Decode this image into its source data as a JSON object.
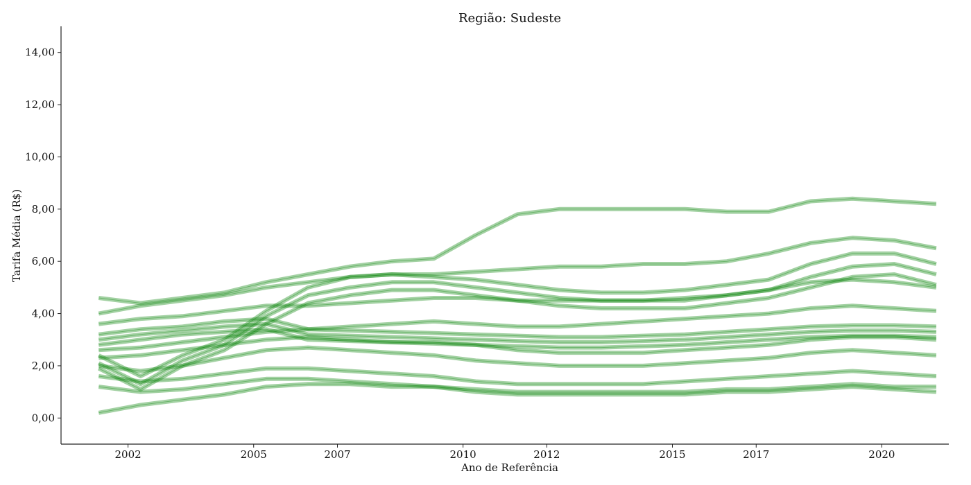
{
  "chart_data": {
    "type": "line",
    "title": "Região: Sudeste",
    "xlabel": "Ano de Referência",
    "ylabel": "Tarifa Média (R$)",
    "xlim": [
      2000.4,
      2021.6
    ],
    "ylim": [
      -1.0,
      15.0
    ],
    "x_ticks": [
      2002,
      2005,
      2007,
      2010,
      2012,
      2015,
      2017,
      2020
    ],
    "y_ticks": [
      0,
      2,
      4,
      6,
      8,
      10,
      12,
      14
    ],
    "y_tick_labels": [
      "0,00",
      "2,00",
      "4,00",
      "6,00",
      "8,00",
      "10,00",
      "12,00",
      "14,00"
    ],
    "grid": false,
    "line_color": "#008000",
    "line_alpha": 0.12,
    "x": [
      2001.3,
      2002.3,
      2003.3,
      2004.3,
      2005.3,
      2006.3,
      2007.3,
      2008.3,
      2009.3,
      2010.3,
      2011.3,
      2012.3,
      2013.3,
      2014.3,
      2015.3,
      2016.3,
      2017.3,
      2018.3,
      2019.3,
      2020.3,
      2021.3
    ],
    "series": [
      {
        "values": [
          2.1,
          1.3,
          2.2,
          2.8,
          3.9,
          4.7,
          5.0,
          5.2,
          5.2,
          5.0,
          4.8,
          4.6,
          4.5,
          4.5,
          4.5,
          4.7,
          4.9,
          5.4,
          5.8,
          5.9,
          5.5
        ]
      },
      {
        "values": [
          3.0,
          3.2,
          3.35,
          3.5,
          3.6,
          3.2,
          3.15,
          3.1,
          3.05,
          3.0,
          2.95,
          2.9,
          2.9,
          2.95,
          3.0,
          3.1,
          3.2,
          3.3,
          3.35,
          3.35,
          3.3
        ]
      },
      {
        "values": [
          2.4,
          1.6,
          2.4,
          3.0,
          4.1,
          5.0,
          5.4,
          5.5,
          5.4,
          5.3,
          5.1,
          4.9,
          4.8,
          4.8,
          4.9,
          5.1,
          5.3,
          5.9,
          6.3,
          6.3,
          5.9
        ]
      },
      {
        "values": [
          1.9,
          1.1,
          2.0,
          2.6,
          3.6,
          4.4,
          4.7,
          4.9,
          4.9,
          4.7,
          4.5,
          4.3,
          4.2,
          4.2,
          4.2,
          4.4,
          4.6,
          5.0,
          5.4,
          5.5,
          5.1
        ]
      },
      {
        "values": [
          3.2,
          3.4,
          3.5,
          3.7,
          3.8,
          3.4,
          3.35,
          3.3,
          3.25,
          3.2,
          3.15,
          3.1,
          3.1,
          3.15,
          3.2,
          3.3,
          3.4,
          3.5,
          3.55,
          3.55,
          3.5
        ]
      },
      {
        "values": [
          2.8,
          3.0,
          3.2,
          3.3,
          3.4,
          3.0,
          2.95,
          2.9,
          2.85,
          2.8,
          2.75,
          2.7,
          2.7,
          2.75,
          2.8,
          2.9,
          3.0,
          3.1,
          3.15,
          3.15,
          3.1
        ]
      },
      {
        "values": [
          2.6,
          2.7,
          2.9,
          3.1,
          3.3,
          3.4,
          3.5,
          3.6,
          3.7,
          3.6,
          3.5,
          3.5,
          3.6,
          3.7,
          3.8,
          3.9,
          4.0,
          4.2,
          4.3,
          4.2,
          4.1
        ]
      },
      {
        "values": [
          2.0,
          1.8,
          2.0,
          2.3,
          2.6,
          2.7,
          2.6,
          2.5,
          2.4,
          2.2,
          2.1,
          2.0,
          2.0,
          2.0,
          2.1,
          2.2,
          2.3,
          2.5,
          2.6,
          2.5,
          2.4
        ]
      },
      {
        "values": [
          1.6,
          1.4,
          1.5,
          1.7,
          1.9,
          1.9,
          1.8,
          1.7,
          1.6,
          1.4,
          1.3,
          1.3,
          1.3,
          1.3,
          1.4,
          1.5,
          1.6,
          1.7,
          1.8,
          1.7,
          1.6
        ]
      },
      {
        "values": [
          3.6,
          3.8,
          3.9,
          4.1,
          4.3,
          4.3,
          4.4,
          4.5,
          4.6,
          4.6,
          4.5,
          4.5,
          4.5,
          4.5,
          4.6,
          4.7,
          4.9,
          5.2,
          5.3,
          5.2,
          5.0
        ]
      },
      {
        "values": [
          1.2,
          1.0,
          1.1,
          1.3,
          1.5,
          1.5,
          1.4,
          1.3,
          1.2,
          1.0,
          0.9,
          0.9,
          0.9,
          0.9,
          0.9,
          1.0,
          1.0,
          1.1,
          1.2,
          1.1,
          1.0
        ]
      },
      {
        "values": [
          4.0,
          4.3,
          4.5,
          4.7,
          5.0,
          5.2,
          5.4,
          5.5,
          5.5,
          5.6,
          5.7,
          5.8,
          5.8,
          5.9,
          5.9,
          6.0,
          6.3,
          6.7,
          6.9,
          6.8,
          6.5
        ]
      },
      {
        "values": [
          2.3,
          2.4,
          2.6,
          2.8,
          3.0,
          3.1,
          3.0,
          2.9,
          2.9,
          2.8,
          2.6,
          2.5,
          2.5,
          2.5,
          2.6,
          2.7,
          2.8,
          3.0,
          3.1,
          3.1,
          3.0
        ]
      },
      {
        "values": [
          0.2,
          0.5,
          0.7,
          0.9,
          1.2,
          1.3,
          1.3,
          1.2,
          1.2,
          1.1,
          1.0,
          1.0,
          1.0,
          1.0,
          1.0,
          1.1,
          1.1,
          1.2,
          1.3,
          1.2,
          1.2
        ]
      },
      {
        "values": [
          4.6,
          4.4,
          4.6,
          4.8,
          5.2,
          5.5,
          5.8,
          6.0,
          6.1,
          7.0,
          7.8,
          8.0,
          8.0,
          8.0,
          8.0,
          7.9,
          7.9,
          8.3,
          8.4,
          8.3,
          8.2
        ]
      }
    ]
  }
}
